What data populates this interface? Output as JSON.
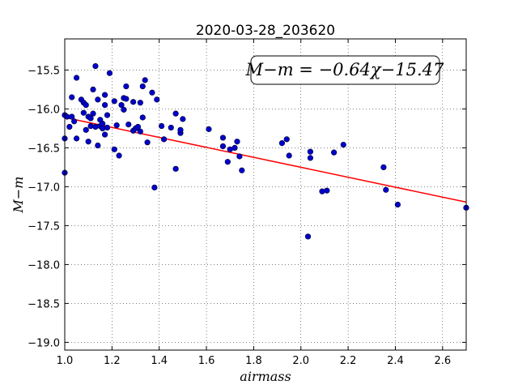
{
  "chart_data": {
    "type": "scatter",
    "title": "2020-03-28_203620",
    "xlabel": "airmass",
    "ylabel": "M−m",
    "xlim": [
      1.0,
      2.7
    ],
    "ylim": [
      -19.1,
      -15.1
    ],
    "y_inverted": true,
    "grid": true,
    "x_ticks": [
      1.0,
      1.2,
      1.4,
      1.6,
      1.8,
      2.0,
      2.2,
      2.4,
      2.6
    ],
    "x_tick_labels": [
      "1.0",
      "1.2",
      "1.4",
      "1.6",
      "1.8",
      "2.0",
      "2.2",
      "2.4",
      "2.6"
    ],
    "y_ticks": [
      -15.5,
      -16.0,
      -16.5,
      -17.0,
      -17.5,
      -18.0,
      -18.5,
      -19.0
    ],
    "y_tick_labels": [
      "−15.5",
      "−16.0",
      "−16.5",
      "−17.0",
      "−17.5",
      "−18.0",
      "−18.5",
      "−19.0"
    ],
    "annotation": "M−m = −0.64χ−15.47",
    "fit_line": {
      "slope": -0.64,
      "intercept": -15.47,
      "color": "#ff0000"
    },
    "marker_color": "#0000cc",
    "series": [
      {
        "points": [
          [
            1.0,
            -16.38
          ],
          [
            1.0,
            -16.82
          ],
          [
            1.0,
            -16.08
          ],
          [
            1.01,
            -16.1
          ],
          [
            1.02,
            -16.23
          ],
          [
            1.03,
            -16.1
          ],
          [
            1.03,
            -15.85
          ],
          [
            1.04,
            -16.16
          ],
          [
            1.05,
            -15.6
          ],
          [
            1.05,
            -16.38
          ],
          [
            1.07,
            -15.88
          ],
          [
            1.08,
            -15.92
          ],
          [
            1.08,
            -16.05
          ],
          [
            1.09,
            -15.95
          ],
          [
            1.09,
            -16.27
          ],
          [
            1.1,
            -16.1
          ],
          [
            1.1,
            -16.42
          ],
          [
            1.11,
            -16.12
          ],
          [
            1.11,
            -16.22
          ],
          [
            1.12,
            -15.75
          ],
          [
            1.12,
            -16.06
          ],
          [
            1.13,
            -15.45
          ],
          [
            1.13,
            -16.23
          ],
          [
            1.14,
            -15.88
          ],
          [
            1.14,
            -16.47
          ],
          [
            1.15,
            -16.14
          ],
          [
            1.15,
            -16.22
          ],
          [
            1.16,
            -16.25
          ],
          [
            1.16,
            -16.19
          ],
          [
            1.17,
            -15.82
          ],
          [
            1.17,
            -15.95
          ],
          [
            1.17,
            -16.33
          ],
          [
            1.18,
            -16.08
          ],
          [
            1.18,
            -16.24
          ],
          [
            1.19,
            -15.54
          ],
          [
            1.21,
            -15.9
          ],
          [
            1.21,
            -16.52
          ],
          [
            1.22,
            -16.21
          ],
          [
            1.23,
            -16.6
          ],
          [
            1.24,
            -15.95
          ],
          [
            1.25,
            -15.86
          ],
          [
            1.25,
            -16.01
          ],
          [
            1.26,
            -15.87
          ],
          [
            1.26,
            -15.71
          ],
          [
            1.27,
            -16.2
          ],
          [
            1.29,
            -15.91
          ],
          [
            1.29,
            -16.28
          ],
          [
            1.3,
            -16.25
          ],
          [
            1.31,
            -16.23
          ],
          [
            1.32,
            -15.92
          ],
          [
            1.32,
            -16.29
          ],
          [
            1.33,
            -15.71
          ],
          [
            1.33,
            -16.11
          ],
          [
            1.34,
            -15.63
          ],
          [
            1.35,
            -16.43
          ],
          [
            1.37,
            -15.79
          ],
          [
            1.38,
            -17.01
          ],
          [
            1.39,
            -15.88
          ],
          [
            1.41,
            -16.22
          ],
          [
            1.42,
            -16.39
          ],
          [
            1.45,
            -16.24
          ],
          [
            1.47,
            -16.06
          ],
          [
            1.47,
            -16.77
          ],
          [
            1.49,
            -16.31
          ],
          [
            1.49,
            -16.27
          ],
          [
            1.5,
            -16.13
          ],
          [
            1.61,
            -16.26
          ],
          [
            1.67,
            -16.48
          ],
          [
            1.67,
            -16.37
          ],
          [
            1.69,
            -16.68
          ],
          [
            1.7,
            -16.52
          ],
          [
            1.72,
            -16.5
          ],
          [
            1.73,
            -16.42
          ],
          [
            1.74,
            -16.61
          ],
          [
            1.75,
            -16.79
          ],
          [
            1.92,
            -16.44
          ],
          [
            1.94,
            -16.39
          ],
          [
            1.95,
            -16.6
          ],
          [
            2.03,
            -17.64
          ],
          [
            2.04,
            -16.55
          ],
          [
            2.04,
            -16.63
          ],
          [
            2.09,
            -17.06
          ],
          [
            2.11,
            -17.05
          ],
          [
            2.14,
            -16.56
          ],
          [
            2.18,
            -16.46
          ],
          [
            2.35,
            -16.75
          ],
          [
            2.36,
            -17.04
          ],
          [
            2.41,
            -17.23
          ],
          [
            2.7,
            -17.27
          ]
        ]
      }
    ]
  }
}
